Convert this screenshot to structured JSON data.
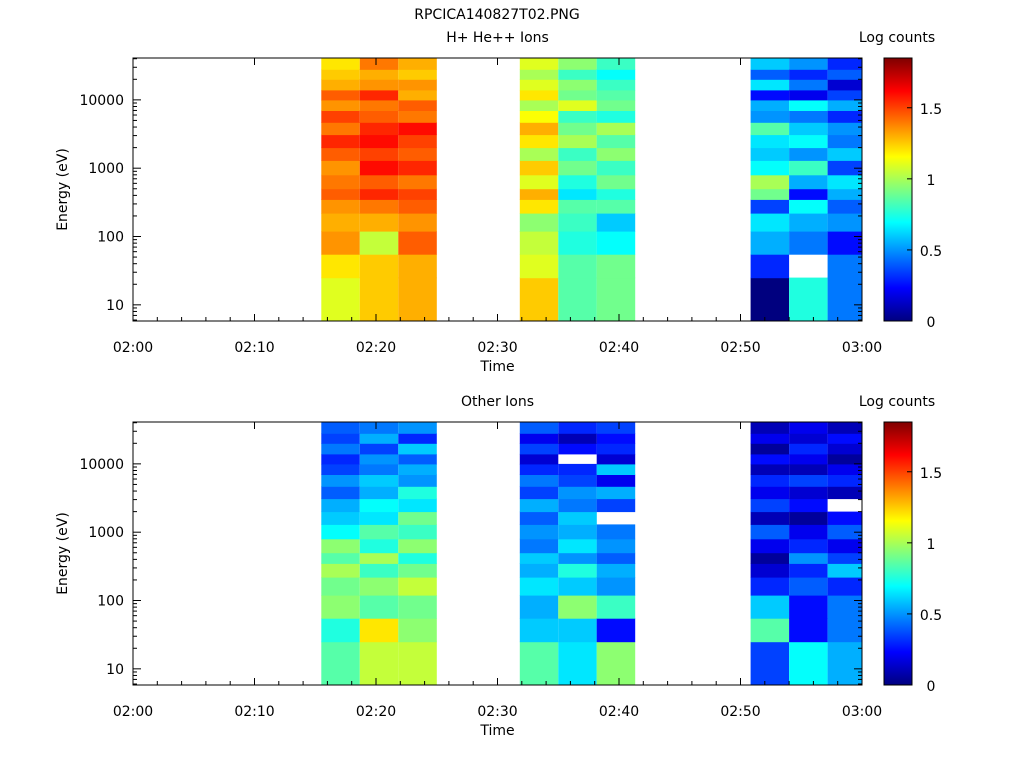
{
  "figure_title": "RPCICA140827T02.PNG",
  "colormap": [
    "#00007f",
    "#0000ff",
    "#007fff",
    "#00ffff",
    "#7fff7f",
    "#ffff00",
    "#ff7f00",
    "#ff0000",
    "#7f0000"
  ],
  "chart_data": [
    {
      "type": "heatmap",
      "title": "H+ He++ Ions",
      "xlabel": "Time",
      "ylabel": "Energy (eV)",
      "colorbar_label": "Log counts",
      "yscale": "log",
      "xlim": [
        "02:00",
        "03:00"
      ],
      "ylim": [
        5.8,
        41000
      ],
      "clim": [
        0,
        1.85
      ],
      "xticks": [
        "02:00",
        "02:10",
        "02:20",
        "02:30",
        "02:40",
        "02:50",
        "03:00"
      ],
      "yticks": [
        "10",
        "100",
        "1000",
        "10000"
      ],
      "cticks": [
        "0",
        "0.5",
        "1",
        "1.5"
      ],
      "time_columns": [
        [
          "02:15:30",
          "02:18:40"
        ],
        [
          "02:18:40",
          "02:21:50"
        ],
        [
          "02:21:50",
          "02:25:00"
        ],
        [
          "02:31:50",
          "02:35:00"
        ],
        [
          "02:35:00",
          "02:38:10"
        ],
        [
          "02:38:10",
          "02:41:20"
        ],
        [
          "02:50:50",
          "02:54:00"
        ],
        [
          "02:54:00",
          "02:57:10"
        ],
        [
          "02:57:10",
          "03:00:20"
        ]
      ],
      "energy_edges": [
        5.8,
        25,
        55,
        120,
        220,
        350,
        500,
        800,
        1300,
        2000,
        3100,
        4700,
        7000,
        10000,
        14000,
        20000,
        28000,
        41000
      ],
      "values": [
        [
          1.1,
          1.2,
          1.35,
          1.3,
          1.35,
          1.45,
          1.4,
          1.35,
          1.45,
          1.55,
          1.4,
          1.5,
          1.35,
          1.45,
          1.3,
          1.25,
          1.2
        ],
        [
          1.25,
          1.25,
          1.05,
          1.3,
          1.4,
          1.55,
          1.45,
          1.6,
          1.5,
          1.6,
          1.55,
          1.45,
          1.4,
          1.55,
          1.35,
          1.3,
          1.4
        ],
        [
          1.3,
          1.3,
          1.45,
          1.35,
          1.45,
          1.5,
          1.4,
          1.55,
          1.45,
          1.5,
          1.6,
          1.4,
          1.45,
          1.3,
          1.35,
          1.25,
          1.3
        ],
        [
          1.25,
          1.1,
          1.05,
          0.95,
          1.2,
          1.3,
          1.1,
          1.25,
          1.0,
          1.2,
          1.3,
          1.15,
          1.0,
          1.2,
          1.1,
          1.0,
          1.1
        ],
        [
          0.85,
          0.85,
          0.75,
          0.8,
          0.85,
          0.65,
          0.75,
          0.9,
          0.8,
          1.0,
          0.9,
          0.8,
          1.1,
          0.9,
          0.95,
          0.8,
          0.95
        ],
        [
          0.9,
          0.9,
          0.7,
          0.6,
          0.85,
          0.75,
          0.9,
          0.8,
          0.95,
          0.85,
          1.0,
          0.75,
          0.9,
          0.85,
          0.8,
          0.7,
          0.8
        ],
        [
          0.0,
          0.3,
          0.55,
          0.65,
          0.35,
          0.9,
          1.0,
          0.7,
          0.6,
          0.65,
          0.85,
          0.5,
          0.55,
          0.25,
          0.65,
          0.4,
          0.6
        ],
        [
          0.75,
          null,
          0.45,
          0.55,
          0.7,
          0.25,
          0.55,
          0.8,
          0.5,
          0.7,
          0.6,
          0.45,
          0.7,
          0.2,
          0.45,
          0.3,
          0.5
        ],
        [
          0.45,
          0.45,
          0.25,
          0.5,
          0.4,
          0.55,
          0.65,
          0.35,
          0.6,
          0.45,
          0.5,
          0.3,
          0.55,
          0.35,
          0.15,
          0.4,
          0.3
        ]
      ]
    },
    {
      "type": "heatmap",
      "title": "Other Ions",
      "xlabel": "Time",
      "ylabel": "Energy (eV)",
      "colorbar_label": "Log counts",
      "yscale": "log",
      "xlim": [
        "02:00",
        "03:00"
      ],
      "ylim": [
        5.8,
        41000
      ],
      "clim": [
        0,
        1.85
      ],
      "xticks": [
        "02:00",
        "02:10",
        "02:20",
        "02:30",
        "02:40",
        "02:50",
        "03:00"
      ],
      "yticks": [
        "10",
        "100",
        "1000",
        "10000"
      ],
      "cticks": [
        "0",
        "0.5",
        "1",
        "1.5"
      ],
      "time_columns": [
        [
          "02:15:30",
          "02:18:40"
        ],
        [
          "02:18:40",
          "02:21:50"
        ],
        [
          "02:21:50",
          "02:25:00"
        ],
        [
          "02:31:50",
          "02:35:00"
        ],
        [
          "02:35:00",
          "02:38:10"
        ],
        [
          "02:38:10",
          "02:41:20"
        ],
        [
          "02:50:50",
          "02:54:00"
        ],
        [
          "02:54:00",
          "02:57:10"
        ],
        [
          "02:57:10",
          "03:00:20"
        ]
      ],
      "energy_edges": [
        5.8,
        25,
        55,
        120,
        220,
        350,
        500,
        800,
        1300,
        2000,
        3100,
        4700,
        7000,
        10000,
        14000,
        20000,
        28000,
        41000
      ],
      "values": [
        [
          0.85,
          0.75,
          0.95,
          0.9,
          1.0,
          0.85,
          0.95,
          0.7,
          0.6,
          0.55,
          0.4,
          0.5,
          0.35,
          0.3,
          0.45,
          0.35,
          0.4
        ],
        [
          1.05,
          1.2,
          0.85,
          0.95,
          0.8,
          1.0,
          0.75,
          0.85,
          0.65,
          0.7,
          0.55,
          0.6,
          0.45,
          0.5,
          0.35,
          0.55,
          0.45
        ],
        [
          1.05,
          0.95,
          0.9,
          1.05,
          0.9,
          0.75,
          0.95,
          0.8,
          0.9,
          0.65,
          0.75,
          0.5,
          0.55,
          0.4,
          0.6,
          0.3,
          0.5
        ],
        [
          0.85,
          0.6,
          0.55,
          0.65,
          0.55,
          0.6,
          0.45,
          0.5,
          0.4,
          0.55,
          0.35,
          0.45,
          0.3,
          0.15,
          0.35,
          0.2,
          0.4
        ],
        [
          0.65,
          0.6,
          0.95,
          0.6,
          0.75,
          0.5,
          0.65,
          0.55,
          0.6,
          0.45,
          0.5,
          0.35,
          0.3,
          null,
          0.25,
          0.1,
          0.3
        ],
        [
          0.95,
          0.25,
          0.8,
          0.5,
          0.55,
          0.4,
          0.5,
          0.45,
          null,
          0.35,
          0.55,
          0.2,
          0.6,
          0.15,
          0.3,
          0.25,
          0.35
        ],
        [
          0.35,
          0.85,
          0.6,
          0.3,
          0.15,
          0.05,
          0.2,
          0.4,
          0.1,
          0.35,
          0.2,
          0.3,
          0.1,
          0.25,
          0.05,
          0.2,
          0.1
        ],
        [
          0.7,
          0.25,
          0.25,
          0.4,
          0.3,
          0.5,
          0.3,
          0.2,
          0.05,
          0.25,
          0.15,
          0.35,
          0.1,
          0.2,
          0.3,
          0.15,
          0.2
        ],
        [
          0.55,
          0.45,
          0.45,
          0.3,
          0.6,
          0.35,
          0.2,
          0.4,
          0.25,
          null,
          0.1,
          0.3,
          0.2,
          0.05,
          0.15,
          0.25,
          0.1
        ]
      ]
    }
  ]
}
